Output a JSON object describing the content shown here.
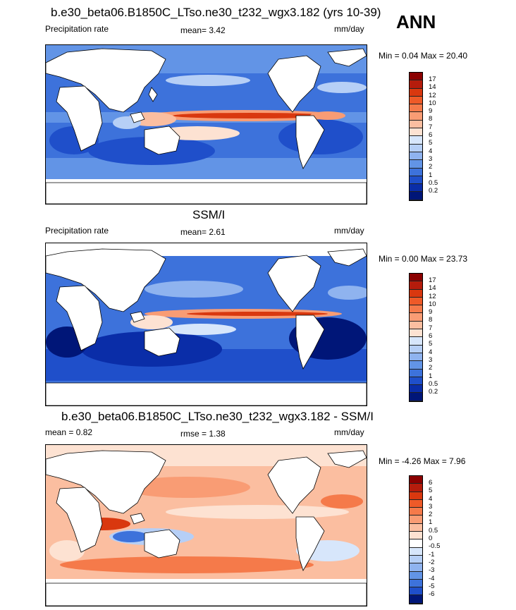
{
  "season_label": "ANN",
  "panels": [
    {
      "title": "b.e30_beta06.B1850C_LTso.ne30_t232_wgx3.182 (yrs 10-39)",
      "left_label": "Precipitation rate",
      "stat1": "mean=   3.42",
      "stat2": "",
      "units": "mm/day",
      "minmax": "Min =   0.04 Max =  20.40",
      "levels": [
        "17",
        "14",
        "12",
        "10",
        "9",
        "8",
        "7",
        "6",
        "5",
        "4",
        "3",
        "2",
        "1",
        "0.5",
        "0.2"
      ],
      "colors": [
        "#8b0000",
        "#b51c0c",
        "#d9380f",
        "#ee5a28",
        "#f57a4a",
        "#f99c74",
        "#fbbea0",
        "#fde2d2",
        "#d7e6fb",
        "#b6cff6",
        "#8fb3ef",
        "#6294e6",
        "#3d72db",
        "#1f4fca",
        "#0a2da8",
        "#001678"
      ]
    },
    {
      "title": "SSM/I",
      "left_label": "Precipitation rate",
      "stat1": "mean=   2.61",
      "stat2": "",
      "units": "mm/day",
      "minmax": "Min =   0.00 Max =  23.73",
      "levels": [
        "17",
        "14",
        "12",
        "10",
        "9",
        "8",
        "7",
        "6",
        "5",
        "4",
        "3",
        "2",
        "1",
        "0.5",
        "0.2"
      ],
      "colors": [
        "#8b0000",
        "#b51c0c",
        "#d9380f",
        "#ee5a28",
        "#f57a4a",
        "#f99c74",
        "#fbbea0",
        "#fde2d2",
        "#d7e6fb",
        "#b6cff6",
        "#8fb3ef",
        "#6294e6",
        "#3d72db",
        "#1f4fca",
        "#0a2da8",
        "#001678"
      ]
    },
    {
      "title": "b.e30_beta06.B1850C_LTso.ne30_t232_wgx3.182 - SSM/I",
      "left_label": "mean =   0.82",
      "stat1": "rmse =   1.38",
      "stat2": "",
      "units": "mm/day",
      "minmax": "Min =  -4.26 Max =   7.96",
      "levels": [
        "6",
        "5",
        "4",
        "3",
        "2",
        "1",
        "0.5",
        "0",
        "-0.5",
        "-1",
        "-2",
        "-3",
        "-4",
        "-5",
        "-6"
      ],
      "colors": [
        "#8b0000",
        "#b51c0c",
        "#d9380f",
        "#ee5a28",
        "#f57a4a",
        "#f99c74",
        "#fbbea0",
        "#fde2d2",
        "#ffffff",
        "#d7e6fb",
        "#b6cff6",
        "#8fb3ef",
        "#6294e6",
        "#3d72db",
        "#1f4fca",
        "#001678"
      ]
    }
  ]
}
